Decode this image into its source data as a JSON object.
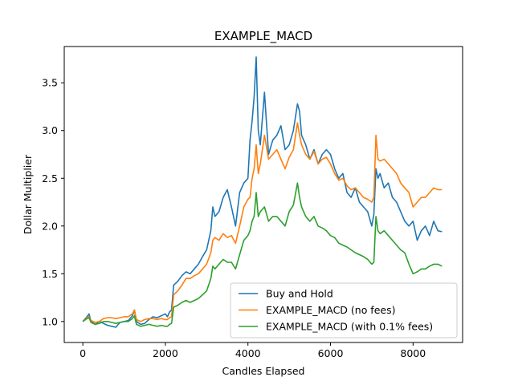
{
  "chart_data": {
    "type": "line",
    "title": "EXAMPLE_MACD",
    "xlabel": "Candles Elapsed",
    "ylabel": "Dollar Multiplier",
    "xlim": [
      -450,
      9200
    ],
    "ylim": [
      0.78,
      3.88
    ],
    "x_ticks": [
      0,
      2000,
      4000,
      6000,
      8000
    ],
    "y_ticks": [
      1.0,
      1.5,
      2.0,
      2.5,
      3.0,
      3.5
    ],
    "x_tick_labels": [
      "0",
      "2000",
      "4000",
      "6000",
      "8000"
    ],
    "y_tick_labels": [
      "1.0",
      "1.5",
      "2.0",
      "2.5",
      "3.0",
      "3.5"
    ],
    "grid": false,
    "legend_position": "lower-right",
    "series": [
      {
        "name": "Buy and Hold",
        "color": "#1f77b4",
        "x": [
          0,
          100,
          150,
          200,
          300,
          400,
          500,
          600,
          700,
          800,
          900,
          1000,
          1100,
          1200,
          1250,
          1300,
          1400,
          1500,
          1600,
          1700,
          1800,
          1900,
          2000,
          2050,
          2100,
          2150,
          2200,
          2300,
          2400,
          2500,
          2600,
          2700,
          2800,
          2900,
          3000,
          3100,
          3150,
          3200,
          3300,
          3400,
          3500,
          3600,
          3700,
          3800,
          3900,
          4000,
          4050,
          4100,
          4150,
          4200,
          4250,
          4300,
          4400,
          4500,
          4600,
          4700,
          4800,
          4900,
          5000,
          5100,
          5200,
          5250,
          5300,
          5400,
          5500,
          5600,
          5700,
          5800,
          5900,
          6000,
          6100,
          6200,
          6300,
          6400,
          6500,
          6600,
          6700,
          6800,
          6900,
          7000,
          7050,
          7100,
          7150,
          7200,
          7300,
          7400,
          7500,
          7600,
          7700,
          7800,
          7900,
          8000,
          8100,
          8200,
          8300,
          8400,
          8500,
          8600,
          8700
        ],
        "y": [
          1.0,
          1.05,
          1.08,
          1.0,
          0.97,
          1.0,
          0.98,
          0.96,
          0.95,
          0.94,
          0.99,
          1.0,
          1.01,
          1.06,
          1.12,
          1.0,
          0.97,
          0.98,
          1.02,
          1.05,
          1.04,
          1.06,
          1.08,
          1.05,
          1.1,
          1.12,
          1.38,
          1.42,
          1.48,
          1.52,
          1.5,
          1.55,
          1.6,
          1.68,
          1.75,
          1.95,
          2.2,
          2.1,
          2.15,
          2.3,
          2.38,
          2.2,
          2.0,
          2.35,
          2.45,
          2.5,
          2.9,
          3.1,
          3.35,
          3.77,
          3.0,
          2.85,
          3.4,
          2.75,
          2.9,
          2.95,
          3.05,
          2.8,
          2.85,
          3.0,
          3.28,
          3.2,
          2.95,
          2.85,
          2.7,
          2.8,
          2.65,
          2.75,
          2.8,
          2.75,
          2.6,
          2.5,
          2.55,
          2.35,
          2.3,
          2.4,
          2.25,
          2.2,
          2.15,
          2.0,
          2.12,
          2.6,
          2.5,
          2.55,
          2.4,
          2.45,
          2.3,
          2.25,
          2.15,
          2.05,
          2.0,
          2.05,
          1.85,
          1.95,
          2.0,
          1.9,
          2.05,
          1.95,
          1.94
        ]
      },
      {
        "name": "EXAMPLE_MACD (no fees)",
        "color": "#ff7f0e",
        "x": [
          0,
          100,
          150,
          200,
          300,
          400,
          500,
          600,
          700,
          800,
          900,
          1000,
          1100,
          1200,
          1250,
          1300,
          1400,
          1500,
          1600,
          1700,
          1800,
          1900,
          2000,
          2050,
          2100,
          2150,
          2200,
          2300,
          2400,
          2500,
          2600,
          2700,
          2800,
          2900,
          3000,
          3100,
          3150,
          3200,
          3300,
          3400,
          3500,
          3600,
          3700,
          3800,
          3900,
          4000,
          4050,
          4100,
          4150,
          4200,
          4250,
          4300,
          4400,
          4500,
          4600,
          4700,
          4800,
          4900,
          5000,
          5100,
          5200,
          5250,
          5300,
          5400,
          5500,
          5600,
          5700,
          5800,
          5900,
          6000,
          6100,
          6200,
          6300,
          6400,
          6500,
          6600,
          6700,
          6800,
          6900,
          7000,
          7050,
          7100,
          7150,
          7200,
          7300,
          7400,
          7500,
          7600,
          7700,
          7800,
          7900,
          8000,
          8100,
          8200,
          8300,
          8400,
          8500,
          8600,
          8700
        ],
        "y": [
          1.0,
          1.04,
          1.05,
          1.01,
          0.99,
          1.0,
          1.03,
          1.04,
          1.04,
          1.03,
          1.04,
          1.05,
          1.05,
          1.08,
          1.12,
          1.02,
          1.0,
          1.02,
          1.03,
          1.03,
          1.02,
          1.03,
          1.02,
          1.02,
          1.04,
          1.05,
          1.28,
          1.32,
          1.38,
          1.45,
          1.45,
          1.48,
          1.5,
          1.55,
          1.6,
          1.72,
          1.85,
          1.88,
          1.85,
          1.92,
          1.88,
          1.9,
          1.82,
          2.0,
          2.2,
          2.28,
          2.3,
          2.5,
          2.6,
          2.85,
          2.55,
          2.65,
          2.95,
          2.7,
          2.75,
          2.8,
          2.7,
          2.6,
          2.72,
          2.8,
          3.08,
          2.95,
          2.85,
          2.75,
          2.7,
          2.78,
          2.65,
          2.7,
          2.72,
          2.65,
          2.55,
          2.48,
          2.5,
          2.42,
          2.38,
          2.4,
          2.35,
          2.3,
          2.28,
          2.25,
          2.3,
          2.95,
          2.7,
          2.68,
          2.7,
          2.65,
          2.6,
          2.55,
          2.45,
          2.4,
          2.35,
          2.2,
          2.25,
          2.3,
          2.3,
          2.35,
          2.4,
          2.38,
          2.38
        ]
      },
      {
        "name": "EXAMPLE_MACD (with 0.1% fees)",
        "color": "#2ca02c",
        "x": [
          0,
          100,
          150,
          200,
          300,
          400,
          500,
          600,
          700,
          800,
          900,
          1000,
          1100,
          1200,
          1250,
          1300,
          1400,
          1500,
          1600,
          1700,
          1800,
          1900,
          2000,
          2050,
          2100,
          2150,
          2200,
          2300,
          2400,
          2500,
          2600,
          2700,
          2800,
          2900,
          3000,
          3100,
          3150,
          3200,
          3300,
          3400,
          3500,
          3600,
          3700,
          3800,
          3900,
          4000,
          4050,
          4100,
          4150,
          4200,
          4250,
          4300,
          4400,
          4500,
          4600,
          4700,
          4800,
          4900,
          5000,
          5100,
          5200,
          5250,
          5300,
          5400,
          5500,
          5600,
          5700,
          5800,
          5900,
          6000,
          6100,
          6200,
          6300,
          6400,
          6500,
          6600,
          6700,
          6800,
          6900,
          7000,
          7050,
          7100,
          7150,
          7200,
          7300,
          7400,
          7500,
          7600,
          7700,
          7800,
          7900,
          8000,
          8100,
          8200,
          8300,
          8400,
          8500,
          8600,
          8700
        ],
        "y": [
          1.0,
          1.03,
          1.04,
          0.99,
          0.97,
          0.98,
          1.0,
          1.0,
          0.99,
          0.98,
          0.99,
          1.0,
          1.0,
          1.03,
          1.06,
          0.97,
          0.95,
          0.96,
          0.97,
          0.96,
          0.95,
          0.96,
          0.95,
          0.95,
          0.97,
          0.98,
          1.15,
          1.17,
          1.2,
          1.22,
          1.2,
          1.22,
          1.24,
          1.28,
          1.32,
          1.45,
          1.58,
          1.55,
          1.6,
          1.65,
          1.62,
          1.62,
          1.55,
          1.7,
          1.85,
          1.9,
          1.95,
          2.05,
          2.1,
          2.35,
          2.1,
          2.15,
          2.2,
          2.05,
          2.1,
          2.1,
          2.05,
          2.0,
          2.15,
          2.22,
          2.45,
          2.3,
          2.2,
          2.1,
          2.05,
          2.1,
          2.0,
          1.98,
          1.95,
          1.9,
          1.88,
          1.82,
          1.8,
          1.78,
          1.75,
          1.72,
          1.7,
          1.68,
          1.65,
          1.6,
          1.62,
          2.1,
          1.95,
          1.92,
          1.95,
          1.9,
          1.85,
          1.8,
          1.75,
          1.72,
          1.6,
          1.5,
          1.52,
          1.55,
          1.55,
          1.58,
          1.6,
          1.6,
          1.58
        ]
      }
    ]
  }
}
